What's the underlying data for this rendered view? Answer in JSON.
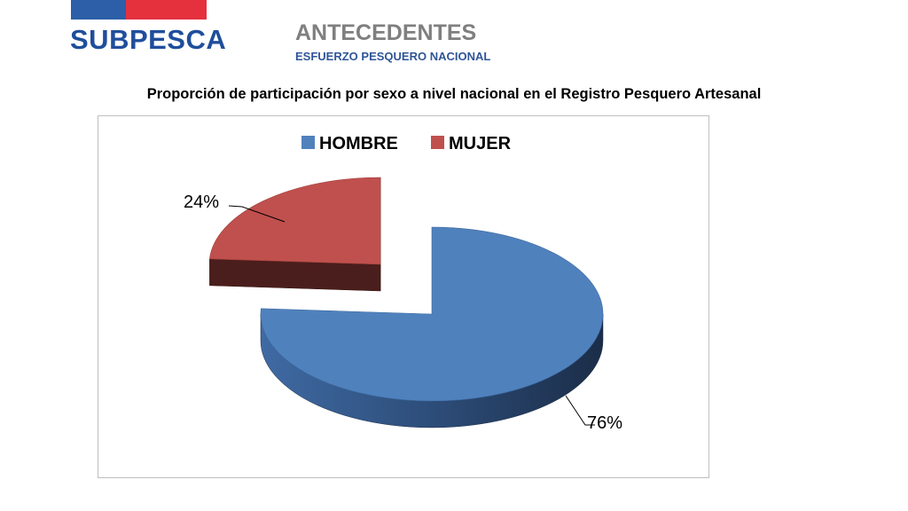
{
  "header": {
    "logo_text": "SUBPESCA",
    "title": "ANTECEDENTES",
    "subtitle": "ESFUERZO PESQUERO NACIONAL"
  },
  "colors": {
    "flag_blue": "#2c5fa8",
    "flag_red": "#e5313e",
    "logo": "#1f4e9c",
    "subtitle": "#2f5597",
    "hombre": "#4f81bd",
    "mujer": "#c0504d"
  },
  "heading": "Proporción de participación por sexo a nivel nacional en el Registro Pesquero Artesanal",
  "chart_data": {
    "type": "pie",
    "style": "3d-exploded",
    "title": "",
    "legend_position": "top",
    "categories": [
      "HOMBRE",
      "MUJER"
    ],
    "values": [
      76,
      24
    ],
    "data_labels": [
      "76%",
      "24%"
    ]
  }
}
